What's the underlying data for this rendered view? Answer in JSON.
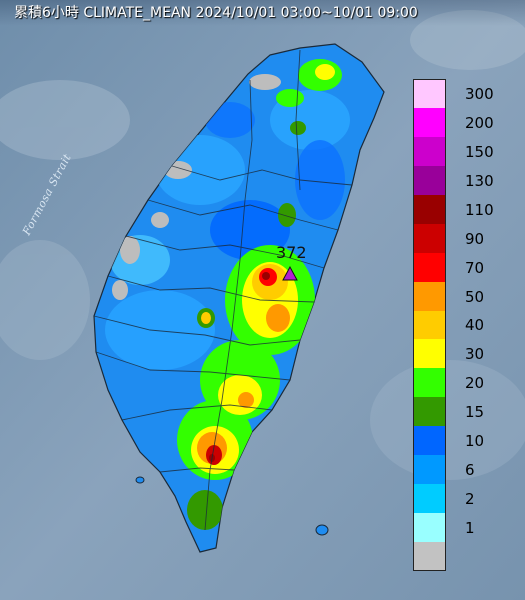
{
  "title": "累積6小時 CLIMATE_MEAN 2024/10/01 03:00~10/01 09:00",
  "strait_label": "Formosa Strait",
  "max_marker": {
    "value": "372",
    "color": "#b020d0"
  },
  "legend": {
    "items": [
      {
        "label": "300",
        "color": "#ffc7ff"
      },
      {
        "label": "200",
        "color": "#ff00ff"
      },
      {
        "label": "150",
        "color": "#cc00cc"
      },
      {
        "label": "130",
        "color": "#99009a"
      },
      {
        "label": "110",
        "color": "#990000"
      },
      {
        "label": "90",
        "color": "#cc0000"
      },
      {
        "label": "70",
        "color": "#ff0000"
      },
      {
        "label": "50",
        "color": "#ff9900"
      },
      {
        "label": "40",
        "color": "#ffcc00"
      },
      {
        "label": "30",
        "color": "#ffff00"
      },
      {
        "label": "20",
        "color": "#33ff00"
      },
      {
        "label": "15",
        "color": "#339900"
      },
      {
        "label": "10",
        "color": "#0066ff"
      },
      {
        "label": "6",
        "color": "#0099ff"
      },
      {
        "label": "2",
        "color": "#00ccff"
      },
      {
        "label": "1",
        "color": "#99ffff"
      },
      {
        "label": "",
        "color": "#c2c2c2"
      }
    ]
  },
  "colors": {
    "sea": "#7f9ab4",
    "land_base": "#1f8cf0"
  }
}
